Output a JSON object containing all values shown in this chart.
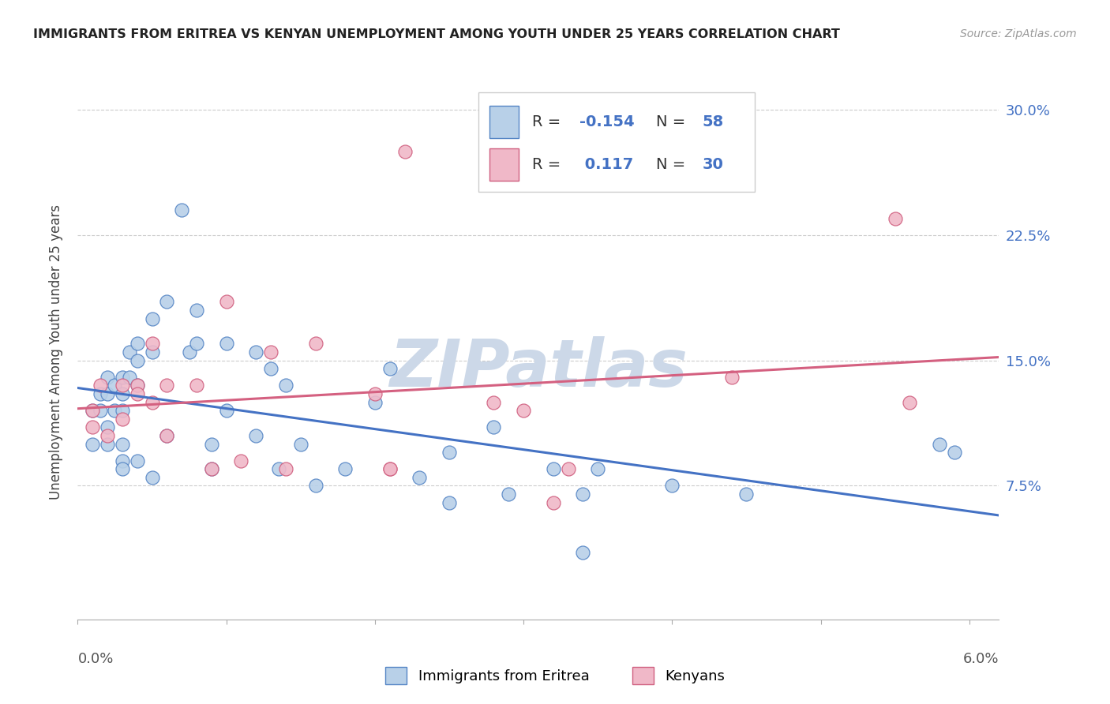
{
  "title": "IMMIGRANTS FROM ERITREA VS KENYAN UNEMPLOYMENT AMONG YOUTH UNDER 25 YEARS CORRELATION CHART",
  "source": "Source: ZipAtlas.com",
  "ylabel": "Unemployment Among Youth under 25 years",
  "y_ticks": [
    0.075,
    0.15,
    0.225,
    0.3
  ],
  "y_tick_labels": [
    "7.5%",
    "15.0%",
    "22.5%",
    "30.0%"
  ],
  "xlim": [
    0.0,
    0.062
  ],
  "ylim": [
    -0.005,
    0.315
  ],
  "blue_R": -0.154,
  "blue_N": 58,
  "pink_R": 0.117,
  "pink_N": 30,
  "legend_bottom_label1": "Immigrants from Eritrea",
  "legend_bottom_label2": "Kenyans",
  "blue_scatter_x": [
    0.001,
    0.001,
    0.0015,
    0.0015,
    0.002,
    0.002,
    0.002,
    0.002,
    0.0025,
    0.0025,
    0.003,
    0.003,
    0.003,
    0.003,
    0.003,
    0.003,
    0.0035,
    0.0035,
    0.004,
    0.004,
    0.004,
    0.004,
    0.005,
    0.005,
    0.005,
    0.006,
    0.006,
    0.007,
    0.0075,
    0.008,
    0.008,
    0.009,
    0.009,
    0.01,
    0.01,
    0.012,
    0.012,
    0.013,
    0.0135,
    0.014,
    0.015,
    0.016,
    0.018,
    0.02,
    0.021,
    0.023,
    0.025,
    0.025,
    0.028,
    0.029,
    0.032,
    0.034,
    0.034,
    0.035,
    0.04,
    0.045,
    0.058,
    0.059
  ],
  "blue_scatter_y": [
    0.12,
    0.1,
    0.13,
    0.12,
    0.14,
    0.13,
    0.11,
    0.1,
    0.135,
    0.12,
    0.14,
    0.13,
    0.12,
    0.1,
    0.09,
    0.085,
    0.155,
    0.14,
    0.16,
    0.15,
    0.135,
    0.09,
    0.175,
    0.155,
    0.08,
    0.185,
    0.105,
    0.24,
    0.155,
    0.18,
    0.16,
    0.1,
    0.085,
    0.16,
    0.12,
    0.155,
    0.105,
    0.145,
    0.085,
    0.135,
    0.1,
    0.075,
    0.085,
    0.125,
    0.145,
    0.08,
    0.065,
    0.095,
    0.11,
    0.07,
    0.085,
    0.07,
    0.035,
    0.085,
    0.075,
    0.07,
    0.1,
    0.095
  ],
  "pink_scatter_x": [
    0.001,
    0.001,
    0.0015,
    0.002,
    0.003,
    0.003,
    0.004,
    0.004,
    0.005,
    0.005,
    0.006,
    0.006,
    0.008,
    0.009,
    0.01,
    0.011,
    0.013,
    0.014,
    0.016,
    0.02,
    0.021,
    0.021,
    0.022,
    0.028,
    0.03,
    0.032,
    0.033,
    0.044,
    0.055,
    0.056
  ],
  "pink_scatter_y": [
    0.12,
    0.11,
    0.135,
    0.105,
    0.135,
    0.115,
    0.135,
    0.13,
    0.16,
    0.125,
    0.135,
    0.105,
    0.135,
    0.085,
    0.185,
    0.09,
    0.155,
    0.085,
    0.16,
    0.13,
    0.085,
    0.085,
    0.275,
    0.125,
    0.12,
    0.065,
    0.085,
    0.14,
    0.235,
    0.125
  ],
  "blue_face_color": "#b8d0e8",
  "blue_edge_color": "#5585c5",
  "pink_face_color": "#f0b8c8",
  "pink_edge_color": "#d06080",
  "blue_line_color": "#4472c4",
  "pink_line_color": "#d46080",
  "watermark": "ZIPatlas",
  "watermark_color": "#ccd8e8",
  "grid_color": "#cccccc",
  "title_color": "#222222",
  "source_color": "#999999",
  "axis_label_color": "#555555",
  "right_tick_color": "#4472c4"
}
